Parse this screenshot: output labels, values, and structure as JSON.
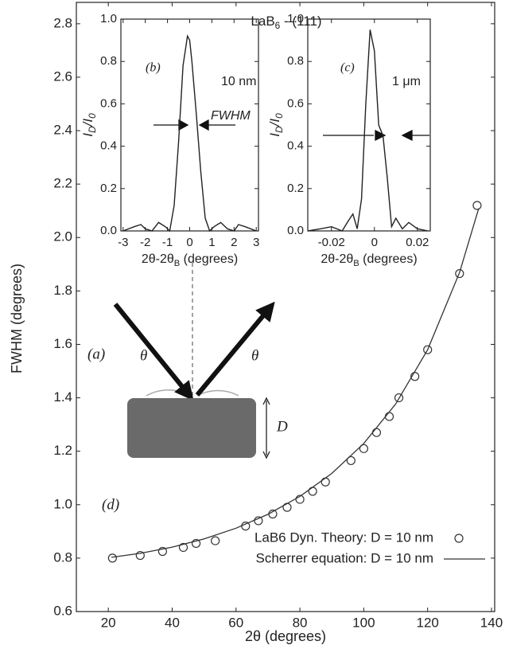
{
  "chart_data": [
    {
      "type": "scatter",
      "title": [
        "LaB",
        "6",
        " - (111)"
      ],
      "xlabel": "2θ (degrees)",
      "ylabel": "FWHM (degrees)",
      "xlim": [
        10,
        141
      ],
      "ylim": [
        0.6,
        2.88
      ],
      "xticks": [
        20,
        40,
        60,
        80,
        100,
        120,
        140
      ],
      "yticks": [
        0.6,
        0.8,
        {
          "value": 1,
          "label": "1.0"
        },
        1.2,
        1.4,
        1.6,
        1.8,
        {
          "value": 2,
          "label": "2.0"
        },
        2.2,
        2.4,
        2.6,
        2.8
      ],
      "legend": "lower right",
      "series": [
        {
          "name": "LaB6 Dyn. Theory: D = 10 nm",
          "color": "#333333",
          "marker": "open-circle",
          "x": [
            21.3,
            30,
            37,
            43.5,
            47.5,
            53.5,
            63,
            67,
            71.5,
            76,
            80,
            84,
            88,
            96,
            100,
            104,
            108,
            111,
            116,
            120,
            130,
            135.5
          ],
          "values": [
            0.8,
            0.81,
            0.825,
            0.84,
            0.855,
            0.865,
            0.92,
            0.94,
            0.965,
            0.99,
            1.02,
            1.05,
            1.085,
            1.165,
            1.21,
            1.27,
            1.33,
            1.4,
            1.48,
            1.58,
            1.865,
            2.12
          ]
        },
        {
          "name": "Scherrer equation: D = 10 nm",
          "color": "#333333",
          "marker": null,
          "x": [
            21,
            30,
            40,
            50,
            60,
            70,
            80,
            90,
            100,
            110,
            120,
            130,
            136
          ],
          "values": [
            0.803,
            0.818,
            0.841,
            0.872,
            0.912,
            0.964,
            1.031,
            1.117,
            1.229,
            1.377,
            1.58,
            1.869,
            2.109
          ]
        }
      ],
      "annotations": [
        "(a)",
        "θ",
        "θ",
        "D",
        "(d)"
      ]
    },
    {
      "type": "line",
      "xlabel": [
        "2θ-2θ",
        "B",
        " (degrees)"
      ],
      "ylabel": [
        "I",
        "D",
        "/I",
        "0"
      ],
      "xlim": [
        -3.1,
        3.1
      ],
      "ylim": [
        0,
        1
      ],
      "xticks": [
        -3,
        -2,
        -1,
        0,
        1,
        2,
        3
      ],
      "yticks": [
        {
          "value": 0,
          "label": "0.0"
        },
        0.2,
        0.4,
        0.6,
        0.8,
        {
          "value": 1,
          "label": "1.0"
        }
      ],
      "color": "#222222",
      "x": [
        -3,
        -2.5,
        -2.2,
        -2,
        -1.7,
        -1.4,
        -1.1,
        -0.9,
        -0.7,
        -0.5,
        -0.3,
        -0.1,
        0,
        0.1,
        0.3,
        0.5,
        0.7,
        0.9,
        1.1,
        1.4,
        1.7,
        2,
        2.2,
        2.5,
        3
      ],
      "values": [
        0,
        0.02,
        0.03,
        0.01,
        0,
        0.04,
        0.02,
        0,
        0.12,
        0.42,
        0.78,
        0.92,
        0.9,
        0.8,
        0.55,
        0.28,
        0.06,
        0,
        0.02,
        0.04,
        0.01,
        0,
        0.03,
        0.02,
        0
      ],
      "annotations": [
        "(b)",
        "10 nm",
        "FWHM"
      ]
    },
    {
      "type": "line",
      "xlabel": [
        "2θ-2θ",
        "B",
        " (degrees)"
      ],
      "ylabel": [
        "I",
        "D",
        "/I",
        "0"
      ],
      "xlim": [
        -0.031,
        0.026
      ],
      "ylim": [
        0,
        1
      ],
      "xticks": [
        -0.02,
        0,
        0.02
      ],
      "yticks": [
        {
          "value": 0,
          "label": "0.0"
        },
        0.2,
        0.4,
        0.6,
        0.8,
        {
          "value": 1,
          "label": "1.0"
        }
      ],
      "color": "#222222",
      "x": [
        -0.031,
        -0.025,
        -0.02,
        -0.015,
        -0.012,
        -0.01,
        -0.008,
        -0.006,
        -0.004,
        -0.002,
        0,
        0.002,
        0.004,
        0.006,
        0.008,
        0.01,
        0.013,
        0.016,
        0.02,
        0.025
      ],
      "values": [
        0,
        0.01,
        0.02,
        0,
        0.05,
        0.08,
        0.01,
        0.15,
        0.6,
        0.95,
        0.85,
        0.5,
        0.45,
        0.25,
        0.02,
        0.06,
        0.01,
        0.04,
        0.01,
        0
      ],
      "annotations": [
        "(c)",
        "1 μm"
      ]
    }
  ]
}
